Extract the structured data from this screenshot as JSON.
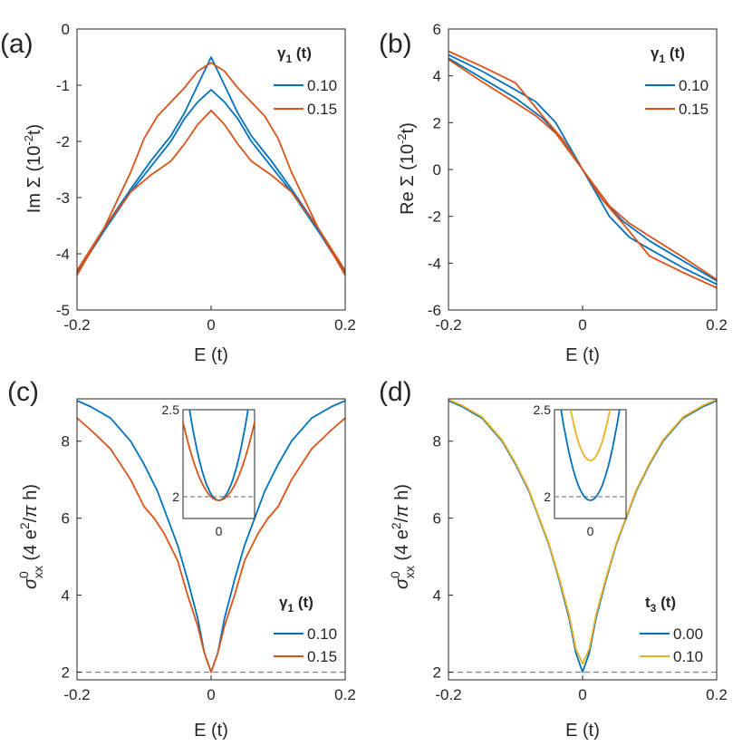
{
  "colors": {
    "blue": "#0072BD",
    "orange": "#D95319",
    "yellow": "#EDB120",
    "axis": "#262626",
    "ref": "#808080"
  },
  "chart_data": [
    {
      "panel": "(a)",
      "type": "line",
      "xlabel": "E (t)",
      "ylabel": "Im Σ (10^-2 t)",
      "xlim": [
        -0.2,
        0.2
      ],
      "ylim": [
        -5,
        0
      ],
      "xticks": [
        "-0.2",
        "0",
        "0.2"
      ],
      "yticks": [
        "-5",
        "-4",
        "-3",
        "-2",
        "-1",
        "0"
      ],
      "legend": {
        "title": "γ1 (t)",
        "position": "top-right",
        "entries": [
          "0.10",
          "0.15"
        ]
      },
      "series": [
        {
          "name": "0.10",
          "color": "blue",
          "x": [
            -0.2,
            -0.16,
            -0.12,
            -0.09,
            -0.06,
            -0.04,
            -0.02,
            0,
            0.02,
            0.04,
            0.06,
            0.09,
            0.12,
            0.16,
            0.2
          ],
          "y": [
            -4.3,
            -3.55,
            -2.85,
            -2.35,
            -1.9,
            -1.5,
            -1.0,
            -0.5,
            -1.0,
            -1.5,
            -1.9,
            -2.35,
            -2.85,
            -3.55,
            -4.3
          ]
        },
        {
          "name": "0.10",
          "color": "blue",
          "x": [
            -0.2,
            -0.16,
            -0.12,
            -0.09,
            -0.06,
            -0.04,
            -0.02,
            0,
            0.02,
            0.04,
            0.06,
            0.09,
            0.12,
            0.16,
            0.2
          ],
          "y": [
            -4.35,
            -3.6,
            -2.9,
            -2.45,
            -2.0,
            -1.6,
            -1.3,
            -1.08,
            -1.3,
            -1.6,
            -2.0,
            -2.45,
            -2.9,
            -3.6,
            -4.35
          ]
        },
        {
          "name": "0.15",
          "color": "orange",
          "x": [
            -0.2,
            -0.16,
            -0.12,
            -0.1,
            -0.08,
            -0.06,
            -0.04,
            -0.02,
            0,
            0.02,
            0.04,
            0.06,
            0.08,
            0.1,
            0.12,
            0.16,
            0.2
          ],
          "y": [
            -4.38,
            -3.55,
            -2.55,
            -1.95,
            -1.55,
            -1.3,
            -1.05,
            -0.75,
            -0.6,
            -0.75,
            -1.05,
            -1.3,
            -1.55,
            -1.95,
            -2.55,
            -3.55,
            -4.38
          ]
        },
        {
          "name": "0.15",
          "color": "orange",
          "x": [
            -0.2,
            -0.16,
            -0.12,
            -0.09,
            -0.06,
            -0.04,
            -0.02,
            0,
            0.02,
            0.04,
            0.06,
            0.09,
            0.12,
            0.16,
            0.2
          ],
          "y": [
            -4.3,
            -3.55,
            -2.9,
            -2.6,
            -2.35,
            -2.05,
            -1.7,
            -1.45,
            -1.7,
            -2.05,
            -2.35,
            -2.6,
            -2.9,
            -3.55,
            -4.3
          ]
        }
      ]
    },
    {
      "panel": "(b)",
      "type": "line",
      "xlabel": "E (t)",
      "ylabel": "Re Σ (10^-2 t)",
      "xlim": [
        -0.2,
        0.2
      ],
      "ylim": [
        -6,
        6
      ],
      "xticks": [
        "-0.2",
        "0",
        "0.2"
      ],
      "yticks": [
        "-6",
        "-4",
        "-2",
        "0",
        "2",
        "4",
        "6"
      ],
      "legend": {
        "title": "γ1 (t)",
        "position": "top-right",
        "entries": [
          "0.10",
          "0.15"
        ]
      },
      "series": [
        {
          "name": "0.10",
          "color": "blue",
          "x": [
            -0.2,
            -0.15,
            -0.1,
            -0.07,
            -0.04,
            -0.02,
            0,
            0.02,
            0.04,
            0.07,
            0.1,
            0.15,
            0.2
          ],
          "y": [
            4.9,
            4.2,
            3.4,
            2.9,
            2.0,
            1.0,
            0,
            -1.0,
            -2.0,
            -2.9,
            -3.4,
            -4.2,
            -4.9
          ]
        },
        {
          "name": "0.10",
          "color": "blue",
          "x": [
            -0.2,
            -0.15,
            -0.1,
            -0.06,
            -0.03,
            0,
            0.03,
            0.06,
            0.1,
            0.15,
            0.2
          ],
          "y": [
            4.75,
            3.9,
            3.05,
            2.2,
            1.3,
            0,
            -1.3,
            -2.2,
            -3.05,
            -3.9,
            -4.75
          ]
        },
        {
          "name": "0.15",
          "color": "orange",
          "x": [
            -0.2,
            -0.15,
            -0.1,
            -0.06,
            -0.03,
            0,
            0.03,
            0.06,
            0.1,
            0.15,
            0.2
          ],
          "y": [
            5.05,
            4.4,
            3.7,
            2.3,
            1.3,
            0,
            -1.3,
            -2.3,
            -3.7,
            -4.4,
            -5.05
          ]
        },
        {
          "name": "0.15",
          "color": "orange",
          "x": [
            -0.2,
            -0.15,
            -0.1,
            -0.07,
            -0.04,
            0,
            0.04,
            0.07,
            0.1,
            0.15,
            0.2
          ],
          "y": [
            4.7,
            3.75,
            2.85,
            2.3,
            1.55,
            0,
            -1.55,
            -2.3,
            -2.85,
            -3.75,
            -4.7
          ]
        }
      ]
    },
    {
      "panel": "(c)",
      "type": "line",
      "xlabel": "E (t)",
      "ylabel": "σ^0_xx (4 e^2/π h)",
      "xlim": [
        -0.2,
        0.2
      ],
      "ylim": [
        1.8,
        9.1
      ],
      "xticks": [
        "-0.2",
        "0",
        "0.2"
      ],
      "yticks": [
        "2",
        "4",
        "6",
        "8"
      ],
      "reference_line": 2,
      "legend": {
        "title": "γ1 (t)",
        "position": "bottom-right",
        "entries": [
          "0.10",
          "0.15"
        ]
      },
      "series": [
        {
          "name": "0.10",
          "color": "blue",
          "x": [
            -0.2,
            -0.18,
            -0.15,
            -0.12,
            -0.1,
            -0.08,
            -0.065,
            -0.05,
            -0.035,
            -0.02,
            -0.01,
            0,
            0.01,
            0.02,
            0.035,
            0.05,
            0.065,
            0.08,
            0.1,
            0.12,
            0.15,
            0.18,
            0.2
          ],
          "y": [
            9.05,
            8.9,
            8.6,
            8.0,
            7.4,
            6.7,
            6.0,
            5.3,
            4.4,
            3.4,
            2.5,
            2.0,
            2.5,
            3.4,
            4.4,
            5.3,
            6.0,
            6.7,
            7.4,
            8.0,
            8.6,
            8.9,
            9.05
          ]
        },
        {
          "name": "0.15",
          "color": "orange",
          "x": [
            -0.2,
            -0.18,
            -0.15,
            -0.12,
            -0.1,
            -0.085,
            -0.07,
            -0.05,
            -0.035,
            -0.02,
            -0.01,
            0,
            0.01,
            0.02,
            0.035,
            0.05,
            0.07,
            0.085,
            0.1,
            0.12,
            0.15,
            0.18,
            0.2
          ],
          "y": [
            8.6,
            8.3,
            7.8,
            7.0,
            6.3,
            6.0,
            5.6,
            4.9,
            4.0,
            3.2,
            2.5,
            2.0,
            2.5,
            3.2,
            4.0,
            4.9,
            5.6,
            6.0,
            6.3,
            7.0,
            7.8,
            8.3,
            8.6
          ]
        }
      ],
      "inset": {
        "xtick": "0",
        "yticks": [
          "2",
          "2.5"
        ],
        "ylim": [
          1.85,
          2.5
        ]
      }
    },
    {
      "panel": "(d)",
      "type": "line",
      "xlabel": "E (t)",
      "ylabel": "σ^0_xx (4 e^2/π h)",
      "xlim": [
        -0.2,
        0.2
      ],
      "ylim": [
        1.8,
        9.1
      ],
      "xticks": [
        "-0.2",
        "0",
        "0.2"
      ],
      "yticks": [
        "2",
        "4",
        "6",
        "8"
      ],
      "reference_line": 2,
      "legend": {
        "title": "t3 (t)",
        "position": "bottom-right",
        "entries": [
          "0.00",
          "0.10"
        ]
      },
      "series": [
        {
          "name": "0.00",
          "color": "blue",
          "x": [
            -0.2,
            -0.18,
            -0.15,
            -0.12,
            -0.1,
            -0.08,
            -0.065,
            -0.05,
            -0.035,
            -0.02,
            -0.01,
            0,
            0.01,
            0.02,
            0.035,
            0.05,
            0.065,
            0.08,
            0.1,
            0.12,
            0.15,
            0.18,
            0.2
          ],
          "y": [
            9.05,
            8.9,
            8.6,
            8.0,
            7.4,
            6.7,
            6.0,
            5.3,
            4.4,
            3.4,
            2.5,
            2.0,
            2.5,
            3.4,
            4.4,
            5.3,
            6.0,
            6.7,
            7.4,
            8.0,
            8.6,
            8.9,
            9.05
          ]
        },
        {
          "name": "0.10",
          "color": "yellow",
          "x": [
            -0.2,
            -0.18,
            -0.15,
            -0.12,
            -0.1,
            -0.08,
            -0.065,
            -0.05,
            -0.035,
            -0.02,
            -0.01,
            0,
            0.01,
            0.02,
            0.035,
            0.05,
            0.065,
            0.08,
            0.1,
            0.12,
            0.15,
            0.18,
            0.2
          ],
          "y": [
            9.08,
            8.93,
            8.63,
            8.03,
            7.43,
            6.73,
            6.03,
            5.33,
            4.45,
            3.48,
            2.6,
            2.22,
            2.6,
            3.48,
            4.45,
            5.33,
            6.03,
            6.73,
            7.43,
            8.03,
            8.63,
            8.93,
            9.08
          ]
        }
      ],
      "inset": {
        "xtick": "0",
        "yticks": [
          "2",
          "2.5"
        ],
        "ylim": [
          1.85,
          2.5
        ]
      }
    }
  ]
}
